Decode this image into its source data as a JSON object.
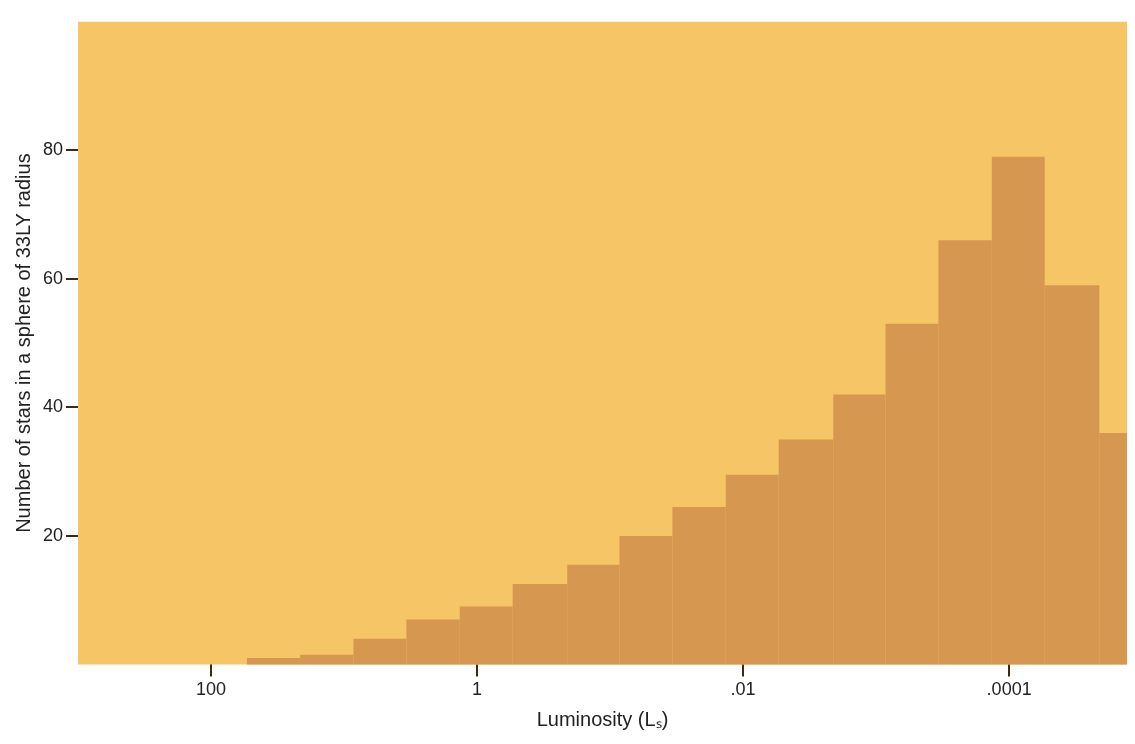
{
  "chart_data": {
    "type": "histogram",
    "xlabel": "Luminosity (Lₛ)",
    "ylabel": "Number of stars in a sphere of 33LY radius",
    "bins": [
      53.7,
      21.4,
      8.5,
      3.4,
      1.35,
      0.54,
      0.21,
      0.085,
      0.034,
      0.0135,
      0.0054,
      0.0021,
      0.00085,
      0.00034,
      0.000135,
      5.4e-05,
      2.1e-05,
      1.3e-05
    ],
    "values": [
      1,
      1.5,
      4,
      7,
      9,
      12.5,
      15.5,
      20,
      24.5,
      29.5,
      35,
      42,
      53,
      66,
      79,
      59,
      36
    ],
    "color": "#d69850",
    "log": "x",
    "xlim": [
      1000,
      1.3e-05
    ],
    "xticks": [
      100,
      1,
      {
        "value": 0.01,
        "label": ".01"
      },
      {
        "value": 0.0001,
        "label": ".0001"
      }
    ],
    "ylim": [
      0,
      100
    ],
    "yticks": [
      20,
      40,
      60,
      80
    ],
    "grid": false
  }
}
